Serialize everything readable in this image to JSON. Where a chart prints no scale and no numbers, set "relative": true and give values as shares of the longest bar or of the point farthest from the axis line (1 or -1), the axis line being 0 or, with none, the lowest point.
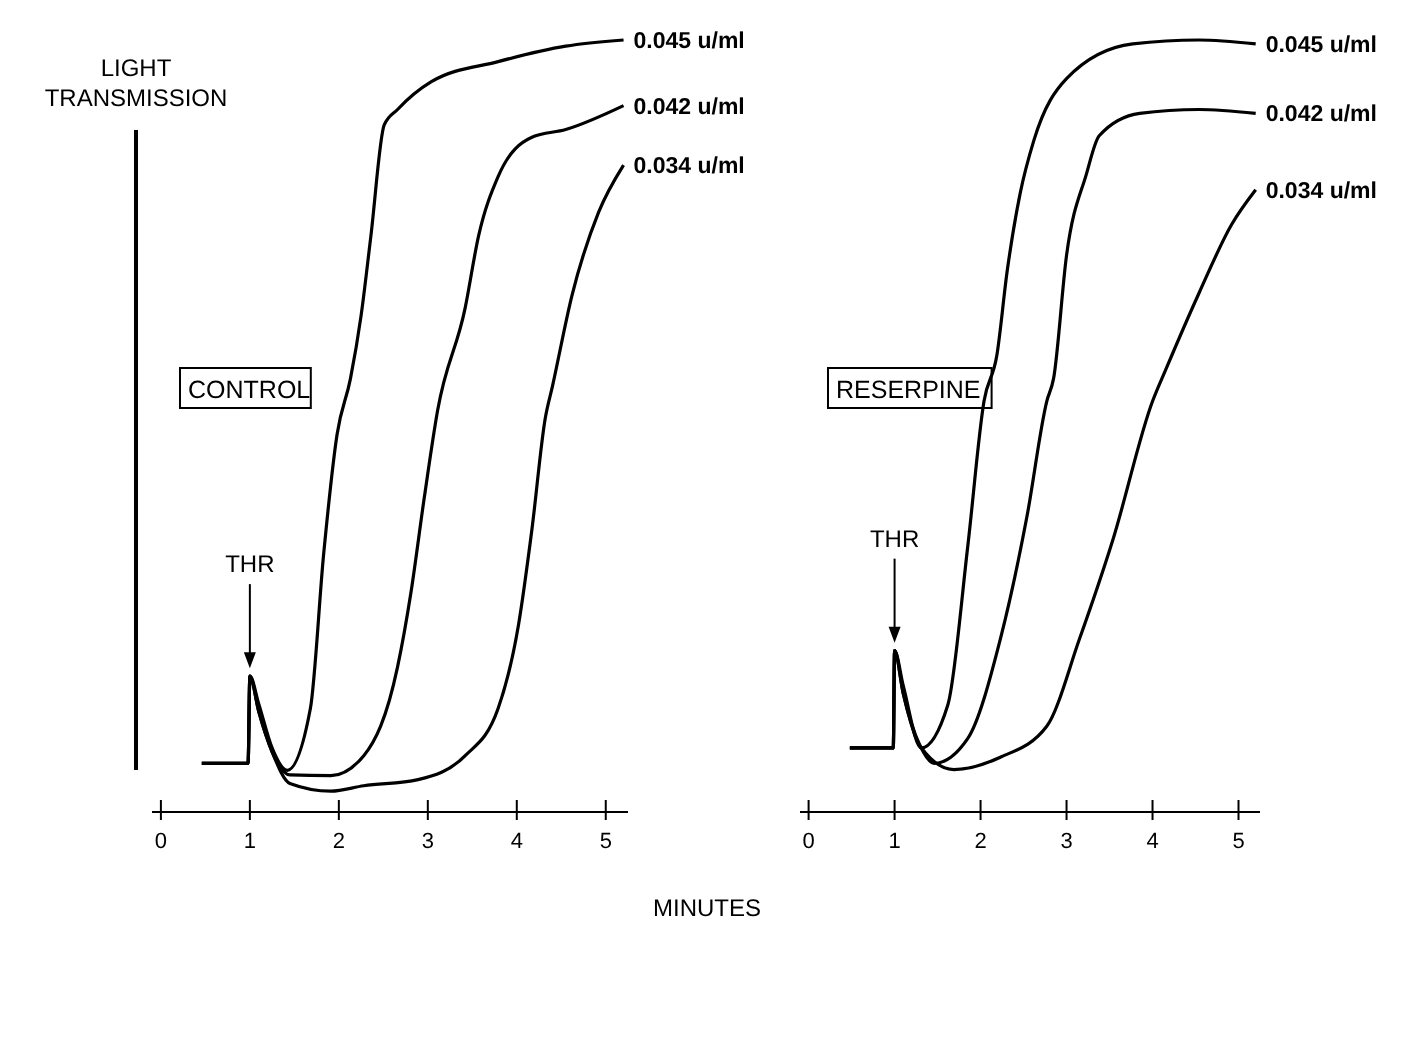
{
  "chart_data": [
    {
      "type": "line",
      "relative": true,
      "ylabel": "LIGHT TRANSMISSION",
      "xlabel": "MINUTES",
      "xlim": [
        -0.1,
        5.25
      ],
      "xticks": [
        0,
        1,
        2,
        3,
        4,
        5
      ],
      "annotations": [
        "CONTROL",
        {
          "text": "THR",
          "x": 1,
          "y": 0.176
        }
      ],
      "series": [
        {
          "name": "0.045 u/ml",
          "color": "#000000",
          "x": [
            0.46,
            0.98,
            1.0,
            1.1,
            1.25,
            1.42,
            1.68,
            1.83,
            1.98,
            2.13,
            2.25,
            2.36,
            2.51,
            2.66,
            3.04,
            3.79,
            4.55,
            5.2
          ],
          "values": [
            0.063,
            0.063,
            0.176,
            0.14,
            0.083,
            0.054,
            0.134,
            0.335,
            0.489,
            0.561,
            0.643,
            0.746,
            0.89,
            0.91,
            0.946,
            0.972,
            0.992,
            1.0
          ]
        },
        {
          "name": "0.042 u/ml",
          "color": "#000000",
          "x": [
            0.46,
            0.98,
            1.0,
            1.1,
            1.25,
            1.45,
            1.91,
            2.28,
            2.66,
            2.81,
            2.96,
            3.11,
            3.42,
            3.57,
            3.79,
            4.17,
            4.55,
            5.2
          ],
          "values": [
            0.063,
            0.063,
            0.176,
            0.13,
            0.078,
            0.048,
            0.047,
            0.073,
            0.188,
            0.284,
            0.407,
            0.52,
            0.653,
            0.746,
            0.823,
            0.874,
            0.884,
            0.915
          ]
        },
        {
          "name": "0.034 u/ml",
          "color": "#000000",
          "x": [
            0.46,
            0.98,
            1.0,
            1.1,
            1.25,
            1.45,
            1.91,
            2.28,
            2.89,
            3.42,
            3.79,
            4.02,
            4.17,
            4.32,
            4.4,
            4.62,
            4.92,
            5.2
          ],
          "values": [
            0.063,
            0.063,
            0.176,
            0.13,
            0.078,
            0.037,
            0.027,
            0.034,
            0.042,
            0.073,
            0.134,
            0.243,
            0.366,
            0.51,
            0.551,
            0.669,
            0.777,
            0.838
          ]
        }
      ]
    },
    {
      "type": "line",
      "relative": true,
      "xlim": [
        -0.1,
        5.25
      ],
      "xticks": [
        0,
        1,
        2,
        3,
        4,
        5
      ],
      "annotations": [
        "RESERPINE",
        {
          "text": "THR",
          "x": 1,
          "y": 0.209
        }
      ],
      "series": [
        {
          "name": "0.045 u/ml",
          "color": "#000000",
          "x": [
            0.48,
            0.985,
            1.0,
            1.1,
            1.31,
            1.62,
            1.85,
            2.04,
            2.19,
            2.31,
            2.46,
            2.62,
            3.0,
            3.77,
            4.54,
            5.2
          ],
          "values": [
            0.083,
            0.083,
            0.209,
            0.164,
            0.083,
            0.139,
            0.343,
            0.532,
            0.592,
            0.701,
            0.801,
            0.87,
            0.95,
            0.995,
            1.0,
            0.995
          ]
        },
        {
          "name": "0.042 u/ml",
          "color": "#000000",
          "x": [
            0.48,
            0.985,
            1.0,
            1.1,
            1.3,
            1.46,
            1.85,
            2.23,
            2.54,
            2.77,
            2.85,
            3.0,
            3.23,
            3.38,
            3.85,
            4.54,
            5.2
          ],
          "values": [
            0.083,
            0.083,
            0.209,
            0.154,
            0.085,
            0.063,
            0.095,
            0.224,
            0.383,
            0.532,
            0.562,
            0.721,
            0.826,
            0.876,
            0.905,
            0.91,
            0.905
          ]
        },
        {
          "name": "0.034 u/ml",
          "color": "#000000",
          "x": [
            0.48,
            0.985,
            1.0,
            1.1,
            1.3,
            1.69,
            2.23,
            2.77,
            3.15,
            3.54,
            4.0,
            4.15,
            4.54,
            4.92,
            5.2
          ],
          "values": [
            0.083,
            0.083,
            0.209,
            0.154,
            0.085,
            0.055,
            0.071,
            0.111,
            0.224,
            0.353,
            0.532,
            0.572,
            0.672,
            0.761,
            0.806
          ]
        }
      ]
    }
  ]
}
